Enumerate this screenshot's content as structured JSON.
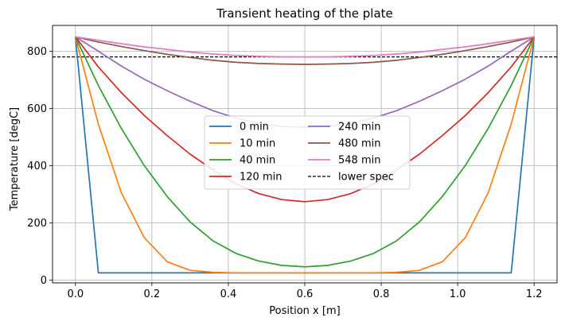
{
  "chart_data": {
    "type": "line",
    "title": "Transient heating of the plate",
    "xlabel": "Position x [m]",
    "ylabel": "Temperature [degC]",
    "xlim": [
      -0.06,
      1.26
    ],
    "ylim": [
      -10,
      890
    ],
    "xticks": [
      0.0,
      0.2,
      0.4,
      0.6,
      0.8,
      1.0,
      1.2
    ],
    "xtick_labels": [
      "0.0",
      "0.2",
      "0.4",
      "0.6",
      "0.8",
      "1.0",
      "1.2"
    ],
    "yticks": [
      0,
      200,
      400,
      600,
      800
    ],
    "ytick_labels": [
      "0",
      "200",
      "400",
      "600",
      "800"
    ],
    "grid": true,
    "legend_position": "center",
    "x": [
      0.0,
      0.06,
      0.12,
      0.18,
      0.24,
      0.3,
      0.36,
      0.42,
      0.48,
      0.54,
      0.6,
      0.66,
      0.72,
      0.78,
      0.84,
      0.9,
      0.96,
      1.02,
      1.08,
      1.14,
      1.2
    ],
    "series": [
      {
        "name": "0 min",
        "color": "#1f77b4",
        "style": "solid",
        "values": [
          850,
          25,
          25,
          25,
          25,
          25,
          25,
          25,
          25,
          25,
          25,
          25,
          25,
          25,
          25,
          25,
          25,
          25,
          25,
          25,
          850
        ]
      },
      {
        "name": "10 min",
        "color": "#ff7f0e",
        "style": "solid",
        "values": [
          850,
          545,
          305,
          148,
          64,
          34,
          27,
          25,
          25,
          25,
          25,
          25,
          25,
          25,
          27,
          34,
          64,
          148,
          305,
          545,
          850
        ]
      },
      {
        "name": "40 min",
        "color": "#2ca02c",
        "style": "solid",
        "values": [
          850,
          680,
          530,
          400,
          292,
          203,
          137,
          93,
          66,
          51,
          46,
          51,
          66,
          93,
          137,
          203,
          292,
          400,
          530,
          680,
          850
        ]
      },
      {
        "name": "120 min",
        "color": "#d62728",
        "style": "solid",
        "values": [
          850,
          745,
          655,
          575,
          505,
          440,
          385,
          336,
          302,
          281,
          274,
          281,
          302,
          336,
          385,
          440,
          505,
          575,
          655,
          745,
          850
        ]
      },
      {
        "name": "240 min",
        "color": "#9467bd",
        "style": "solid",
        "values": [
          850,
          800,
          748,
          702,
          662,
          625,
          592,
          566,
          548,
          537,
          534,
          537,
          548,
          566,
          592,
          625,
          662,
          702,
          748,
          800,
          850
        ]
      },
      {
        "name": "480 min",
        "color": "#8c564b",
        "style": "solid",
        "values": [
          850,
          832,
          816,
          802,
          789,
          778,
          768,
          761,
          757,
          755,
          754,
          755,
          757,
          761,
          768,
          778,
          789,
          802,
          816,
          832,
          850
        ]
      },
      {
        "name": "548 min",
        "color": "#e377c2",
        "style": "solid",
        "values": [
          850,
          838,
          826,
          815,
          806,
          797,
          790,
          785,
          782,
          780,
          780,
          780,
          782,
          785,
          790,
          797,
          806,
          815,
          826,
          838,
          850
        ]
      }
    ],
    "reference_line": {
      "name": "lower spec",
      "y": 780,
      "color": "#000000",
      "style": "dashed"
    }
  }
}
